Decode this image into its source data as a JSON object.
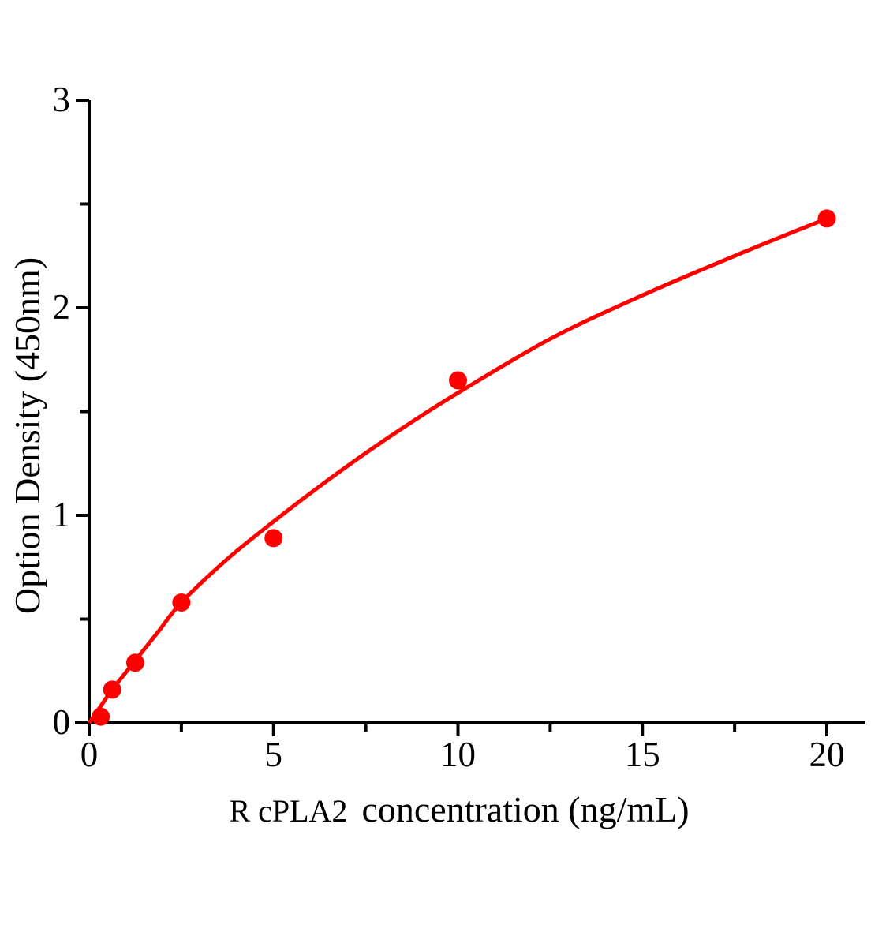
{
  "figure": {
    "background": "#ffffff",
    "description": "ELISA standard curve plot"
  },
  "chart_data": {
    "type": "scatter",
    "title": "",
    "xlabel": {
      "prefix": "R cPLA2",
      "main": "concentration（ng/mL）",
      "full": "R cPLA2  concentration（ng/mL）"
    },
    "ylabel": "Option Density（450nm）",
    "series": [
      {
        "name": "standard-points",
        "x": [
          0.3125,
          0.625,
          1.25,
          2.5,
          5,
          10,
          20
        ],
        "y": [
          0.03,
          0.16,
          0.29,
          0.58,
          0.89,
          1.65,
          2.43
        ]
      }
    ],
    "fit_curve": {
      "name": "fitted-curve",
      "x": [
        0,
        0.31,
        0.625,
        1.25,
        1.875,
        2.5,
        3.75,
        5,
        6.25,
        7.5,
        8.75,
        10,
        12.5,
        15,
        17.5,
        20
      ],
      "y": [
        0,
        0.08,
        0.16,
        0.3,
        0.44,
        0.58,
        0.79,
        0.97,
        1.14,
        1.3,
        1.45,
        1.59,
        1.85,
        2.06,
        2.25,
        2.43
      ]
    },
    "xlim": [
      0,
      21
    ],
    "ylim": [
      0,
      3
    ],
    "x_major_ticks": [
      0,
      5,
      10,
      15,
      20
    ],
    "x_minor_ticks": [
      2.5,
      7.5,
      12.5,
      17.5
    ],
    "y_major_ticks": [
      0,
      1,
      2,
      3
    ],
    "y_minor_ticks": [
      0.5,
      1.5,
      2.5
    ],
    "grid": false,
    "legend": "none",
    "colors": {
      "marker": "#ff0000",
      "curve": "#ff0000",
      "axis": "#000000",
      "text": "#000000",
      "background": "#ffffff"
    }
  }
}
